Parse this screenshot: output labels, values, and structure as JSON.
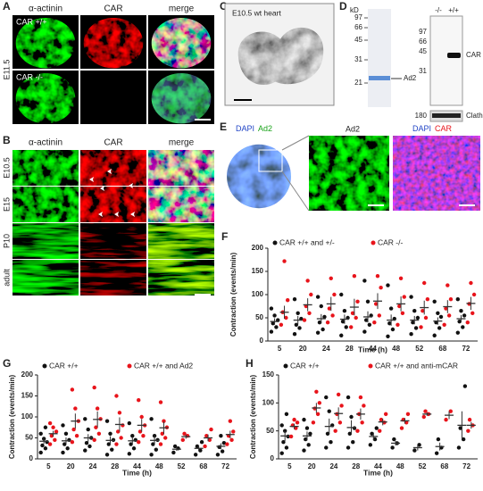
{
  "figure": {
    "panel_labels": [
      "A",
      "B",
      "C",
      "D",
      "E",
      "F",
      "G",
      "H"
    ],
    "A": {
      "columns": [
        "α-actinin",
        "CAR",
        "merge"
      ],
      "rows": [
        "CAR +/+",
        "CAR -/-"
      ],
      "stage": "E11.5"
    },
    "B": {
      "columns": [
        "α-actinin",
        "CAR",
        "merge"
      ],
      "rows": [
        "E10.5",
        "E15",
        "P10",
        "adult"
      ]
    },
    "C": {
      "label": "E10.5 wt heart"
    },
    "D": {
      "unit": "kD",
      "gel_markers": [
        "97",
        "66",
        "45",
        "31",
        "21"
      ],
      "gel_band": "Ad2",
      "blot_genotypes": [
        "-/-",
        "+/+"
      ],
      "blot_markers": [
        "97",
        "66",
        "45",
        "31"
      ],
      "blot_band": "CAR",
      "loading_marker": "180",
      "loading_band": "Clathrin"
    },
    "E": {
      "col1": [
        "DAPI",
        "Ad2"
      ],
      "col2": "Ad2",
      "col3": [
        "DAPI",
        "CAR"
      ]
    }
  },
  "chart_data": [
    {
      "type": "strip",
      "y_label": "Contraction (events/min)",
      "x_label": "Time (h)",
      "categories": [
        "5",
        "20",
        "24",
        "28",
        "44",
        "48",
        "52",
        "68",
        "72"
      ],
      "ylim": [
        0,
        200
      ],
      "yticks": [
        0,
        50,
        100,
        150,
        200
      ],
      "series": [
        {
          "name": "CAR +/+ and +/-",
          "color": "#111111",
          "values": [
            [
              20,
              30,
              38,
              45,
              55,
              70
            ],
            [
              15,
              28,
              35,
              48,
              60,
              90
            ],
            [
              18,
              25,
              40,
              52,
              75,
              95
            ],
            [
              12,
              30,
              42,
              50,
              65,
              100
            ],
            [
              20,
              35,
              45,
              55,
              85,
              130
            ],
            [
              10,
              25,
              38,
              48,
              70,
              120
            ],
            [
              15,
              28,
              40,
              50,
              65,
              95
            ],
            [
              12,
              28,
              40,
              52,
              60,
              85
            ],
            [
              18,
              30,
              42,
              55,
              65,
              90
            ]
          ],
          "means": [
            42,
            45,
            48,
            47,
            52,
            45,
            45,
            43,
            48
          ],
          "errors": [
            7,
            9,
            10,
            10,
            12,
            12,
            9,
            8,
            8
          ]
        },
        {
          "name": "CAR -/-",
          "color": "#e8141b",
          "values": [
            [
              35,
              50,
              62,
              88,
              172
            ],
            [
              45,
              60,
              75,
              100,
              130
            ],
            [
              40,
              55,
              70,
              100,
              135
            ],
            [
              30,
              50,
              60,
              85,
              140
            ],
            [
              40,
              55,
              80,
              115,
              140
            ],
            [
              35,
              60,
              75,
              95,
              135
            ],
            [
              30,
              50,
              65,
              90,
              125
            ],
            [
              35,
              55,
              70,
              90,
              120
            ],
            [
              40,
              60,
              80,
              100,
              125
            ]
          ],
          "means": [
            62,
            78,
            80,
            73,
            86,
            80,
            72,
            74,
            81
          ],
          "errors": [
            14,
            14,
            15,
            18,
            17,
            16,
            15,
            14,
            14
          ]
        }
      ]
    },
    {
      "type": "strip",
      "y_label": "Contraction (events/min)",
      "x_label": "Time (h)",
      "categories": [
        "5",
        "20",
        "24",
        "28",
        "44",
        "48",
        "52",
        "68",
        "72"
      ],
      "ylim": [
        0,
        200
      ],
      "yticks": [
        0,
        50,
        100,
        150,
        200
      ],
      "series": [
        {
          "name": "CAR +/+",
          "color": "#111111",
          "values": [
            [
              15,
              25,
              32,
              40,
              48,
              60,
              75
            ],
            [
              15,
              25,
              35,
              45,
              60,
              80
            ],
            [
              20,
              30,
              38,
              50,
              70,
              95
            ],
            [
              10,
              22,
              35,
              45,
              60,
              90
            ],
            [
              12,
              25,
              35,
              45,
              55,
              85
            ],
            [
              10,
              22,
              35,
              45,
              55,
              95
            ],
            [
              15,
              25,
              30
            ],
            [
              10,
              20,
              30,
              40
            ],
            [
              10,
              18,
              28,
              38,
              55
            ]
          ],
          "means": [
            42,
            43,
            50,
            44,
            43,
            44,
            23,
            25,
            30
          ],
          "errors": [
            6,
            8,
            9,
            10,
            9,
            10,
            4,
            6,
            7
          ]
        },
        {
          "name": "CAR +/+ and Ad2",
          "color": "#e8141b",
          "values": [
            [
              35,
              45,
              55,
              65,
              75,
              85
            ],
            [
              40,
              55,
              70,
              90,
              120,
              165
            ],
            [
              45,
              60,
              75,
              95,
              120,
              170
            ],
            [
              35,
              50,
              65,
              80,
              110,
              150
            ],
            [
              40,
              55,
              65,
              80,
              100,
              140
            ],
            [
              35,
              50,
              60,
              75,
              90,
              135
            ],
            [
              45,
              55,
              60
            ],
            [
              30,
              45,
              55,
              70
            ],
            [
              35,
              45,
              55,
              65,
              90
            ]
          ],
          "means": [
            60,
            90,
            94,
            82,
            80,
            74,
            53,
            50,
            58
          ],
          "errors": [
            7,
            18,
            19,
            17,
            15,
            15,
            5,
            8,
            9
          ]
        }
      ]
    },
    {
      "type": "strip",
      "y_label": "Contraction (events/min)",
      "x_label": "Time (h)",
      "categories": [
        "5",
        "20",
        "24",
        "28",
        "44",
        "48",
        "52",
        "68",
        "72"
      ],
      "ylim": [
        0,
        150
      ],
      "yticks": [
        0,
        50,
        100,
        150
      ],
      "series": [
        {
          "name": "CAR +/+",
          "color": "#111111",
          "values": [
            [
              10,
              20,
              30,
              40,
              50,
              60,
              80
            ],
            [
              15,
              25,
              35,
              45,
              55,
              70
            ],
            [
              20,
              30,
              45,
              60,
              85,
              110
            ],
            [
              20,
              30,
              45,
              55,
              75,
              110
            ],
            [
              25,
              35,
              45,
              55
            ],
            [
              20,
              28,
              35
            ],
            [
              15,
              25
            ],
            [
              10,
              20,
              35
            ],
            [
              20,
              35,
              55,
              130
            ]
          ],
          "means": [
            41,
            41,
            58,
            56,
            40,
            28,
            20,
            22,
            60
          ],
          "errors": [
            9,
            8,
            14,
            13,
            7,
            4,
            5,
            7,
            25
          ]
        },
        {
          "name": "CAR +/+ and anti-mCAR",
          "color": "#e8141b",
          "values": [
            [
              40,
              55,
              60,
              65,
              70
            ],
            [
              65,
              80,
              90,
              100,
              120
            ],
            [
              50,
              65,
              80,
              95,
              115
            ],
            [
              50,
              65,
              80,
              95,
              110
            ],
            [
              50,
              65,
              70,
              80
            ],
            [
              55,
              65,
              70,
              80
            ],
            [
              75,
              80,
              85
            ],
            [
              70,
              85
            ],
            [
              50,
              60,
              70
            ]
          ],
          "means": [
            58,
            91,
            81,
            80,
            66,
            68,
            80,
            78,
            60
          ],
          "errors": [
            5,
            9,
            11,
            10,
            6,
            5,
            3,
            7,
            6
          ]
        }
      ]
    }
  ]
}
